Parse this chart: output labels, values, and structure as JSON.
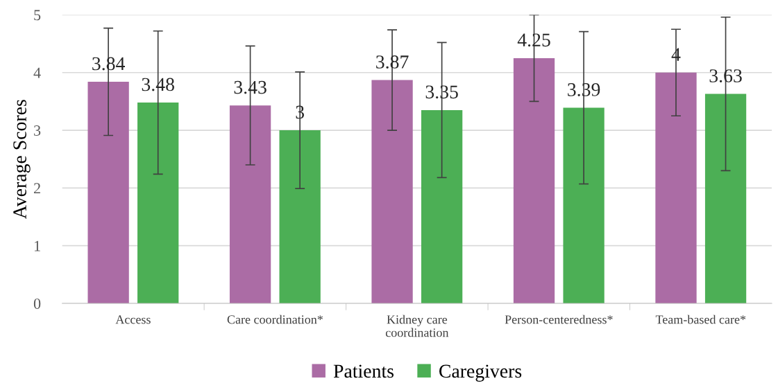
{
  "chart_data": {
    "type": "bar",
    "ylabel": "Average Scores",
    "categories": [
      "Access",
      "Care coordination*",
      "Kidney care\ncoordination",
      "Person-centeredness*",
      "Team-based care*"
    ],
    "series": [
      {
        "name": "Patients",
        "color": "#ab6ca5",
        "values": [
          3.84,
          3.43,
          3.87,
          4.25,
          4.0
        ],
        "errors": [
          0.93,
          1.03,
          0.87,
          0.75,
          0.75
        ],
        "value_labels": [
          "3.84",
          "3.43",
          "3.87",
          "4.25",
          "4"
        ]
      },
      {
        "name": "Caregivers",
        "color": "#4caf55",
        "values": [
          3.48,
          3.0,
          3.35,
          3.39,
          3.63
        ],
        "errors": [
          1.24,
          1.01,
          1.17,
          1.32,
          1.33
        ],
        "value_labels": [
          "3.48",
          "3",
          "3.35",
          "3.39",
          "3.63"
        ]
      }
    ],
    "ylim": [
      0,
      5
    ],
    "yticks": [
      0,
      1,
      2,
      3,
      4,
      5
    ],
    "grid": "y",
    "legend": "bottom"
  }
}
